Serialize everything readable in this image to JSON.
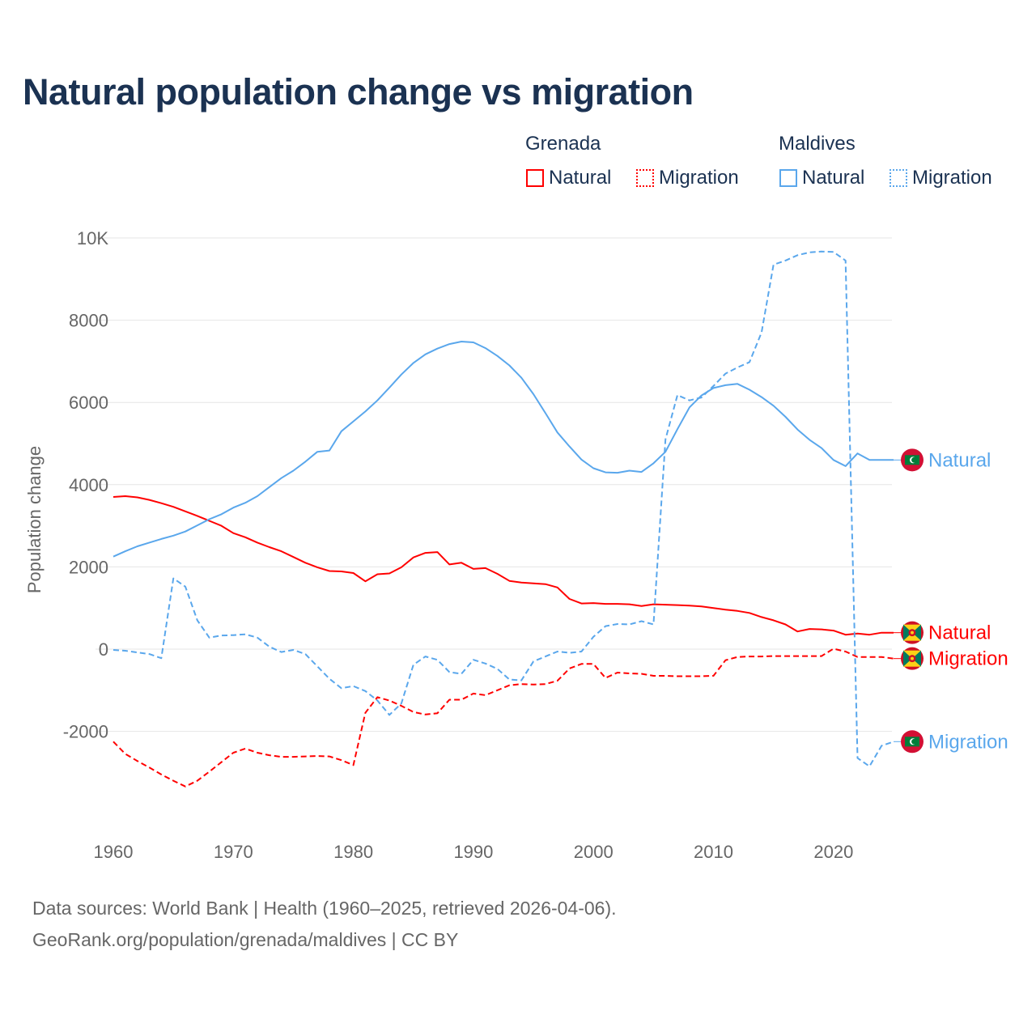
{
  "title": "Natural population change vs migration",
  "legend": {
    "groups": [
      {
        "name": "Grenada",
        "items": [
          "Natural",
          "Migration"
        ]
      },
      {
        "name": "Maldives",
        "items": [
          "Natural",
          "Migration"
        ]
      }
    ]
  },
  "footer": {
    "line1": "Data sources: World Bank | Health (1960–2025, retrieved 2026-04-06).",
    "line2": "GeoRank.org/population/grenada/maldives | CC BY"
  },
  "colors": {
    "grenada": "#ff0000",
    "maldives": "#5aa7ec",
    "title": "#1b3252"
  },
  "chart_data": {
    "type": "line",
    "title": "Natural population change vs migration",
    "xlabel": "",
    "ylabel": "Population change",
    "xlim": [
      1960,
      2025
    ],
    "ylim": [
      -3600,
      10000
    ],
    "x_ticks": [
      1960,
      1970,
      1980,
      1990,
      2000,
      2010,
      2020
    ],
    "y_ticks": [
      {
        "v": 10000,
        "label": "10K"
      },
      {
        "v": 8000,
        "label": "8000"
      },
      {
        "v": 6000,
        "label": "6000"
      },
      {
        "v": 4000,
        "label": "4000"
      },
      {
        "v": 2000,
        "label": "2000"
      },
      {
        "v": 0,
        "label": "0"
      },
      {
        "v": -2000,
        "label": "-2000"
      }
    ],
    "grid": true,
    "x": [
      1960,
      1961,
      1962,
      1963,
      1964,
      1965,
      1966,
      1967,
      1968,
      1969,
      1970,
      1971,
      1972,
      1973,
      1974,
      1975,
      1976,
      1977,
      1978,
      1979,
      1980,
      1981,
      1982,
      1983,
      1984,
      1985,
      1986,
      1987,
      1988,
      1989,
      1990,
      1991,
      1992,
      1993,
      1994,
      1995,
      1996,
      1997,
      1998,
      1999,
      2000,
      2001,
      2002,
      2003,
      2004,
      2005,
      2006,
      2007,
      2008,
      2009,
      2010,
      2011,
      2012,
      2013,
      2014,
      2015,
      2016,
      2017,
      2018,
      2019,
      2020,
      2021,
      2022,
      2023,
      2024,
      2025
    ],
    "series": [
      {
        "name": "Grenada Natural",
        "country": "grenada",
        "dashed": false,
        "end_label": "Natural",
        "values": [
          3700,
          3720,
          3690,
          3630,
          3550,
          3460,
          3350,
          3240,
          3120,
          3000,
          2820,
          2720,
          2590,
          2480,
          2380,
          2240,
          2100,
          1990,
          1900,
          1890,
          1850,
          1650,
          1820,
          1840,
          1990,
          2230,
          2340,
          2360,
          2060,
          2100,
          1950,
          1970,
          1830,
          1660,
          1620,
          1600,
          1580,
          1500,
          1220,
          1110,
          1120,
          1100,
          1100,
          1090,
          1050,
          1090,
          1080,
          1070,
          1060,
          1040,
          1000,
          960,
          930,
          880,
          780,
          700,
          600,
          430,
          490,
          480,
          450,
          350,
          380,
          350,
          400,
          400
        ]
      },
      {
        "name": "Grenada Migration",
        "country": "grenada",
        "dashed": true,
        "end_label": "Migration",
        "values": [
          -2250,
          -2550,
          -2720,
          -2880,
          -3050,
          -3200,
          -3340,
          -3200,
          -2980,
          -2750,
          -2520,
          -2420,
          -2520,
          -2580,
          -2620,
          -2620,
          -2610,
          -2600,
          -2610,
          -2700,
          -2820,
          -1550,
          -1170,
          -1250,
          -1380,
          -1530,
          -1590,
          -1560,
          -1230,
          -1230,
          -1080,
          -1120,
          -1000,
          -880,
          -850,
          -860,
          -850,
          -770,
          -470,
          -360,
          -360,
          -700,
          -570,
          -590,
          -600,
          -650,
          -650,
          -660,
          -660,
          -660,
          -650,
          -270,
          -190,
          -180,
          -180,
          -170,
          -170,
          -170,
          -170,
          -170,
          10,
          -60,
          -190,
          -190,
          -190,
          -230
        ]
      },
      {
        "name": "Maldives Natural",
        "country": "maldives",
        "dashed": false,
        "end_label": "Natural",
        "values": [
          2250,
          2380,
          2500,
          2590,
          2680,
          2760,
          2860,
          3010,
          3160,
          3280,
          3440,
          3560,
          3720,
          3940,
          4160,
          4340,
          4560,
          4800,
          4830,
          5300,
          5540,
          5780,
          6050,
          6360,
          6680,
          6960,
          7170,
          7310,
          7420,
          7480,
          7460,
          7320,
          7130,
          6900,
          6600,
          6200,
          5740,
          5270,
          4930,
          4610,
          4400,
          4300,
          4290,
          4340,
          4310,
          4520,
          4800,
          5350,
          5880,
          6170,
          6350,
          6420,
          6450,
          6310,
          6130,
          5920,
          5650,
          5340,
          5090,
          4890,
          4600,
          4450,
          4760,
          4600,
          4600,
          4600
        ]
      },
      {
        "name": "Maldives Migration",
        "country": "maldives",
        "dashed": true,
        "end_label": "Migration",
        "values": [
          -20,
          -40,
          -80,
          -120,
          -220,
          1720,
          1520,
          700,
          280,
          330,
          340,
          360,
          280,
          60,
          -70,
          -20,
          -120,
          -420,
          -720,
          -950,
          -900,
          -1020,
          -1250,
          -1600,
          -1320,
          -380,
          -180,
          -260,
          -560,
          -600,
          -260,
          -350,
          -480,
          -740,
          -760,
          -300,
          -180,
          -60,
          -90,
          -60,
          300,
          560,
          610,
          600,
          680,
          600,
          5100,
          6180,
          6050,
          6120,
          6400,
          6700,
          6850,
          6980,
          7700,
          9350,
          9450,
          9580,
          9650,
          9670,
          9660,
          9450,
          -2650,
          -2850,
          -2350,
          -2250
        ]
      }
    ]
  }
}
